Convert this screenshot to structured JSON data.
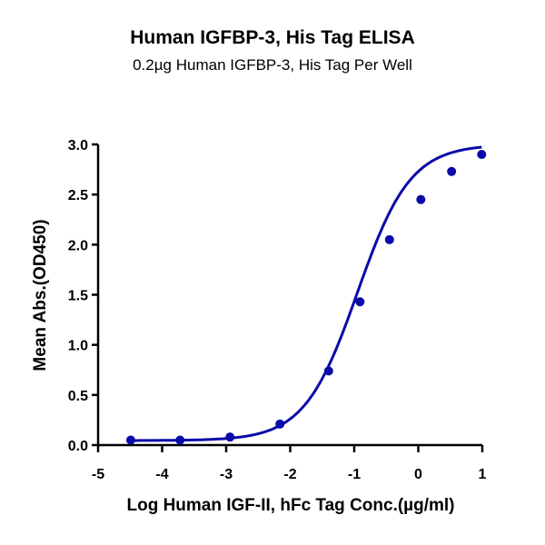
{
  "chart_data": {
    "type": "line",
    "title": "Human IGFBP-3, His Tag ELISA",
    "subtitle": "0.2µg Human IGFBP-3, His Tag Per Well",
    "xlabel": "Log Human IGF-II, hFc Tag Conc.(µg/ml)",
    "ylabel": "Mean Abs.(OD450)",
    "xlim": [
      -5,
      1
    ],
    "ylim": [
      0,
      3.0
    ],
    "xticks": [
      "-5",
      "-4",
      "-3",
      "-2",
      "-1",
      "0",
      "1"
    ],
    "yticks": [
      "0.0",
      "0.5",
      "1.0",
      "1.5",
      "2.0",
      "2.5",
      "3.0"
    ],
    "grid": false,
    "legend": null,
    "series": [
      {
        "name": "Human IGFBP-3, His Tag",
        "color": "#0a0aaa",
        "fit": "4PL sigmoidal",
        "x": [
          -4.49,
          -3.72,
          -2.94,
          -2.16,
          -1.4,
          -0.91,
          -0.45,
          0.04,
          0.52,
          0.99
        ],
        "y": [
          0.05,
          0.05,
          0.08,
          0.21,
          0.74,
          1.43,
          2.05,
          2.45,
          2.73,
          2.9
        ]
      }
    ]
  }
}
